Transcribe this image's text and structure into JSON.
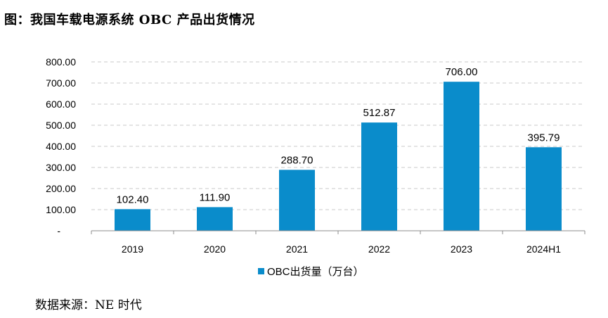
{
  "title": "图：我国车载电源系统 OBC 产品出货情况",
  "source": "数据来源：NE 时代",
  "colors": {
    "bar": "#0a8ccb",
    "grid": "#c8c8c8",
    "axis": "#8c8c8c"
  },
  "chart_data": {
    "type": "bar",
    "categories": [
      "2019",
      "2020",
      "2021",
      "2022",
      "2023",
      "2024H1"
    ],
    "series": [
      {
        "name": "OBC出货量（万台）",
        "values": [
          102.4,
          111.9,
          288.7,
          512.87,
          706.0,
          395.79
        ]
      }
    ],
    "data_labels": [
      "102.40",
      "111.90",
      "288.70",
      "512.87",
      "706.00",
      "395.79"
    ],
    "yticks": [
      "-",
      "100.00",
      "200.00",
      "300.00",
      "400.00",
      "500.00",
      "600.00",
      "700.00",
      "800.00"
    ],
    "ylim": [
      0,
      800
    ],
    "grid": true,
    "legend_position": "bottom"
  }
}
